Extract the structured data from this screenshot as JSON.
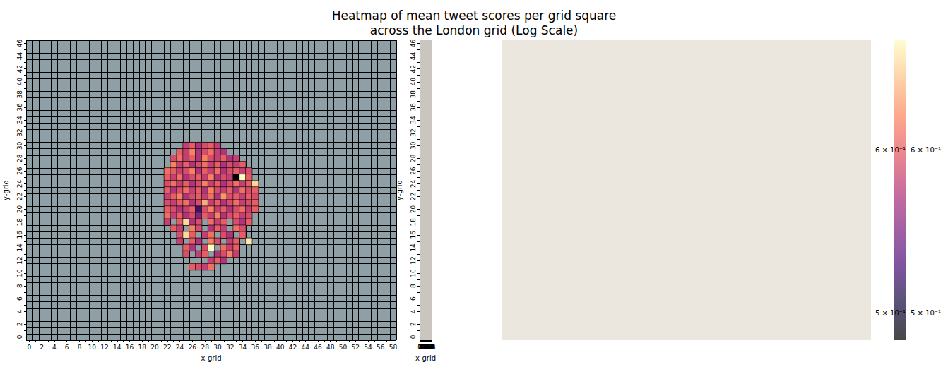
{
  "chart_data": {
    "type": "heatmap",
    "title": "Heatmap of mean tweet scores per grid square\nacross the London grid (Log Scale)",
    "x_label": "x-grid",
    "y_label": "y-grid",
    "x": [
      0,
      null,
      2,
      null,
      4,
      null,
      6,
      null,
      8,
      null,
      10,
      null,
      12,
      null,
      14,
      null,
      16,
      null,
      18,
      null,
      20,
      null,
      22,
      null,
      24,
      null,
      26,
      null,
      28,
      null,
      30,
      null,
      32,
      null,
      34,
      null,
      36,
      null,
      38,
      null,
      40,
      null,
      42,
      null,
      44,
      null,
      46,
      null,
      48,
      null,
      50,
      null,
      52,
      null,
      54,
      null,
      56,
      null,
      58
    ],
    "y": [
      0,
      null,
      2,
      null,
      4,
      null,
      6,
      null,
      8,
      null,
      10,
      null,
      12,
      null,
      14,
      null,
      16,
      null,
      18,
      null,
      20,
      null,
      22,
      null,
      24,
      null,
      26,
      null,
      28,
      null,
      30,
      null,
      32,
      null,
      34,
      null,
      36,
      null,
      38,
      null,
      40,
      null,
      42,
      null,
      44,
      null,
      46
    ],
    "rows": [
      {
        "y": 30,
        "x_start": 25,
        "values": [
          0.58,
          0.6,
          0.57,
          0.59,
          0.6,
          0.58
        ]
      },
      {
        "y": 29,
        "x_start": 24,
        "values": [
          0.6,
          0.58,
          0.62,
          0.57,
          0.59,
          0.61,
          0.58,
          0.57
        ]
      },
      {
        "y": 28,
        "x_start": 23,
        "values": [
          0.59,
          0.61,
          0.58,
          0.6,
          0.57,
          0.62,
          0.59,
          0.58,
          0.6,
          0.57,
          0.58
        ]
      },
      {
        "y": 27,
        "x_start": 23,
        "values": [
          0.62,
          0.58,
          0.6,
          0.57,
          0.59,
          0.61,
          0.58,
          0.6,
          0.57,
          0.59,
          0.58,
          0.6
        ]
      },
      {
        "y": 26,
        "x_start": 22,
        "values": [
          0.61,
          0.6,
          0.58,
          0.59,
          0.62,
          0.57,
          0.6,
          0.58,
          0.61,
          0.57,
          0.59,
          0.6,
          0.58,
          0.59
        ]
      },
      {
        "y": 25,
        "x_start": 22,
        "values": [
          0.6,
          0.58,
          0.61,
          0.57,
          0.59,
          0.6,
          0.58,
          0.62,
          0.57,
          0.59,
          0.58,
          0.485,
          0.68,
          0.6
        ]
      },
      {
        "y": 24,
        "x_start": 22,
        "values": [
          0.59,
          0.61,
          0.58,
          0.6,
          0.57,
          0.59,
          0.62,
          0.58,
          0.6,
          0.57,
          0.59,
          0.61,
          0.58,
          0.6,
          0.66
        ]
      },
      {
        "y": 23,
        "x_start": 22,
        "values": [
          0.6,
          0.57,
          0.59,
          0.61,
          0.58,
          0.6,
          0.57,
          0.62,
          0.59,
          0.58,
          0.6,
          0.57,
          0.61,
          0.59,
          0.6
        ]
      },
      {
        "y": 22,
        "x_start": 22,
        "values": [
          0.58,
          0.6,
          0.62,
          0.57,
          0.59,
          0.6,
          0.58,
          0.61,
          0.57,
          0.63,
          0.59,
          0.6,
          0.58,
          0.6,
          0.59
        ]
      },
      {
        "y": 21,
        "x_start": 22,
        "values": [
          0.59,
          0.58,
          0.6,
          0.61,
          0.57,
          0.59,
          0.64,
          0.58,
          0.6,
          0.57,
          0.59,
          0.61,
          0.58,
          0.59,
          0.6
        ]
      },
      {
        "y": 20,
        "x_start": 22,
        "values": [
          0.6,
          0.59,
          0.57,
          0.58,
          0.6,
          0.52,
          0.59,
          0.62,
          0.58,
          0.6,
          0.57,
          0.59,
          0.61,
          0.58,
          0.6
        ]
      },
      {
        "y": 19,
        "x_start": 22,
        "values": [
          0.61,
          0.58,
          0.6,
          0.57,
          0.59,
          0.55,
          0.6,
          0.58,
          0.62,
          0.57,
          0.59,
          0.6,
          0.58,
          0.59
        ]
      },
      {
        "y": 18,
        "x_start": 22,
        "values": [
          0.58,
          null,
          0.6,
          0.66,
          0.57,
          0.59,
          null,
          0.61,
          0.58,
          0.6,
          null,
          0.59,
          0.57,
          0.6
        ]
      },
      {
        "y": 17,
        "x_start": 23,
        "values": [
          0.6,
          0.58,
          null,
          0.62,
          0.59,
          null,
          0.57,
          0.6,
          0.58,
          null,
          0.61,
          0.59
        ]
      },
      {
        "y": 16,
        "x_start": 24,
        "values": [
          0.59,
          0.66,
          0.6,
          null,
          0.58,
          0.61,
          null,
          0.59,
          0.57,
          null,
          0.6
        ]
      },
      {
        "y": 15,
        "x_start": 24,
        "values": [
          0.58,
          null,
          0.6,
          0.57,
          null,
          0.62,
          0.59,
          null,
          0.58,
          0.6,
          null,
          0.67
        ]
      },
      {
        "y": 14,
        "x_start": 25,
        "values": [
          0.6,
          0.57,
          null,
          0.59,
          0.68,
          null,
          0.61,
          0.58,
          0.6
        ]
      },
      {
        "y": 13,
        "x_start": 25,
        "values": [
          0.59,
          null,
          0.58,
          0.6,
          null,
          0.57,
          0.59,
          0.62,
          0.58
        ]
      },
      {
        "y": 12,
        "x_start": 29,
        "values": [
          0.58,
          0.6,
          0.57
        ]
      },
      {
        "y": 11,
        "x_start": 26,
        "values": [
          0.6,
          0.59,
          0.58,
          0.61
        ]
      }
    ],
    "colorbar": {
      "lim": [
        0.485,
        0.678
      ],
      "ticks": [
        {
          "value": 0.5,
          "label": "5 × 10⁻¹"
        },
        {
          "value": 0.6,
          "label": "6 × 10⁻¹"
        }
      ]
    },
    "color": "magma",
    "log": true,
    "grid": true
  }
}
